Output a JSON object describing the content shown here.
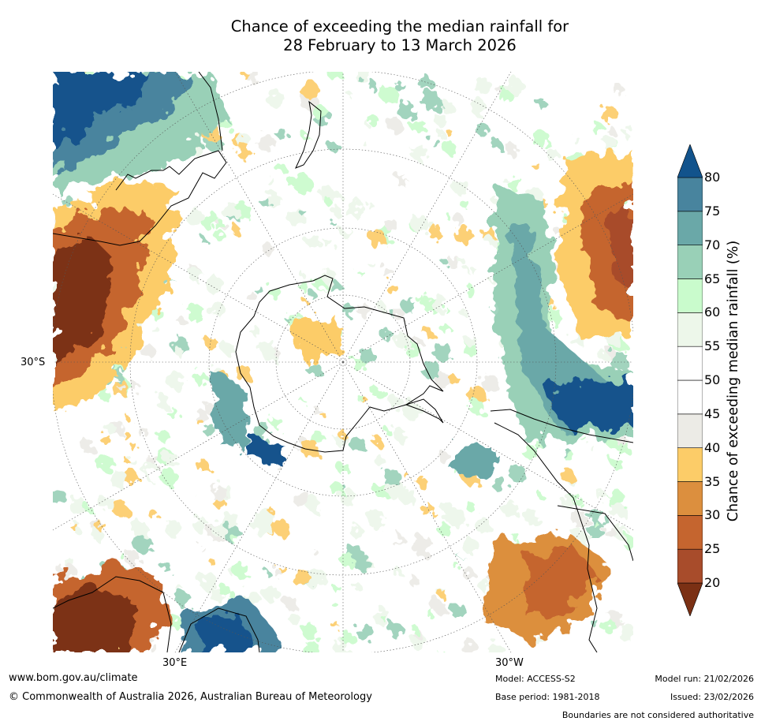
{
  "title": {
    "line1": "Chance of exceeding the median rainfall for",
    "line2": "28 February to 13 March 2026"
  },
  "map": {
    "lat_labels": [
      "30°S"
    ],
    "lon_labels": [
      "30°E",
      "30°W"
    ],
    "projection": "south polar stereographic"
  },
  "colorbar": {
    "label": "Chance of exceeding median rainfall (%)",
    "ticks": [
      "80",
      "75",
      "70",
      "65",
      "60",
      "55",
      "50",
      "45",
      "40",
      "35",
      "30",
      "25",
      "20"
    ],
    "colors": [
      "#7b3014",
      "#a84c2b",
      "#c5652f",
      "#dc8f3e",
      "#fccc68",
      "#ecebe6",
      "#ffffff",
      "#ffffff",
      "#edf7ea",
      "#c9fbcc",
      "#99d0b7",
      "#6aa8a8",
      "#48849e",
      "#12538c"
    ],
    "extend": "both"
  },
  "footer": {
    "website": "www.bom.gov.au/climate",
    "copyright": "© Commonwealth of Australia 2026, Australian Bureau of Meteorology",
    "model": "Model: ACCESS-S2",
    "base_period": "Base period: 1981-2018",
    "model_run": "Model run: 21/02/2026",
    "issued": "Issued: 23/02/2026",
    "disclaimer": "Boundaries are not considered authoritative"
  }
}
